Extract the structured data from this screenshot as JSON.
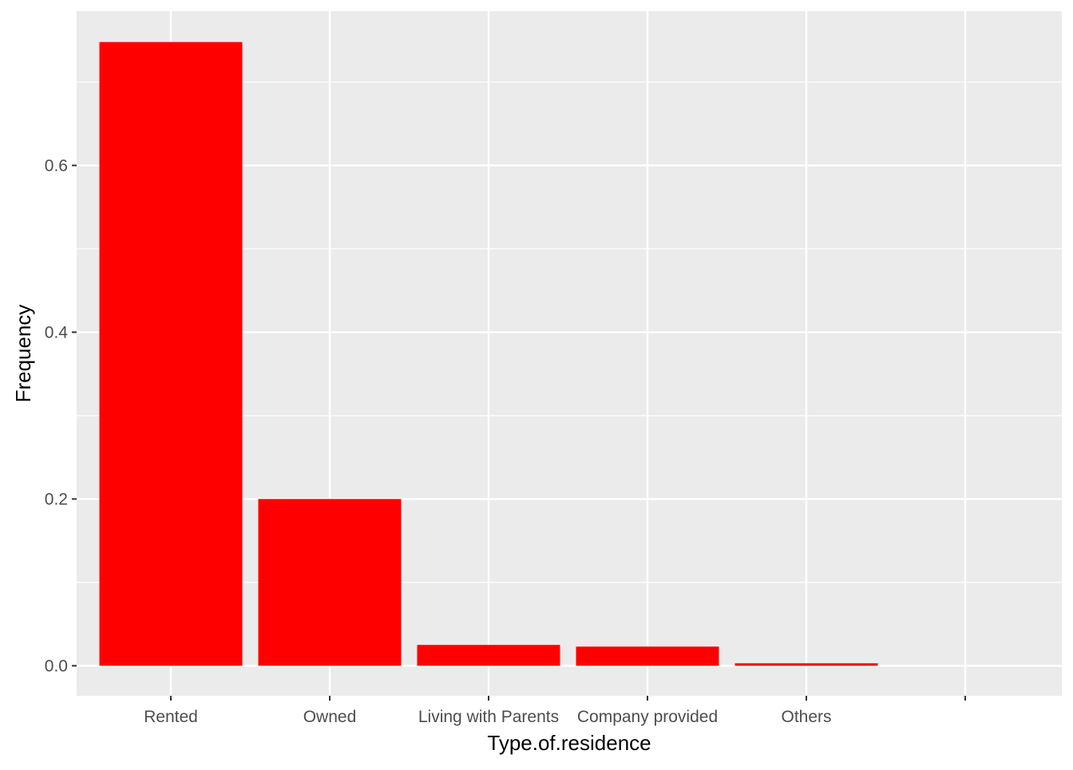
{
  "chart_data": {
    "type": "bar",
    "title": "",
    "xlabel": "Type.of.residence",
    "ylabel": "Frequency",
    "categories": [
      "Rented",
      "Owned",
      "Living with Parents",
      "Company provided",
      "Others",
      ""
    ],
    "values": [
      0.748,
      0.2,
      0.025,
      0.023,
      0.003,
      0
    ],
    "ylim": [
      -0.036,
      0.785
    ],
    "yticks": [
      0.0,
      0.2,
      0.4,
      0.6
    ],
    "ytick_labels": [
      "0.0",
      "0.2",
      "0.4",
      "0.6"
    ],
    "grid": true,
    "legend": "none",
    "colors": {
      "bar": "#ff0000",
      "panel": "#ebebeb",
      "grid": "#ffffff",
      "tick_text": "#4d4d4d",
      "tick_mark": "#333333"
    }
  }
}
